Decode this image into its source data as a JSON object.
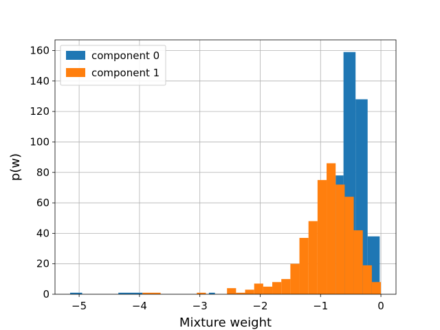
{
  "chart_data": {
    "type": "histogram",
    "title": "",
    "xlabel": "Mixture weight",
    "ylabel": "p(w)",
    "xlim": [
      -5.4,
      0.25
    ],
    "ylim": [
      0,
      167
    ],
    "x_ticks": [
      -5,
      -4,
      -3,
      -2,
      -1,
      0
    ],
    "x_tick_labels": [
      "−5",
      "−4",
      "−3",
      "−2",
      "−1",
      "0"
    ],
    "y_ticks": [
      0,
      20,
      40,
      60,
      80,
      100,
      120,
      140,
      160
    ],
    "y_tick_labels": [
      "0",
      "20",
      "40",
      "60",
      "80",
      "100",
      "120",
      "140",
      "160"
    ],
    "grid": true,
    "legend_position": "top-left",
    "series": [
      {
        "name": "component 0",
        "color": "#1f77b4",
        "bins": [
          {
            "x0": -5.15,
            "x1": -4.95,
            "count": 1
          },
          {
            "x0": -4.35,
            "x1": -3.95,
            "count": 1
          },
          {
            "x0": -2.85,
            "x1": -2.75,
            "count": 1
          },
          {
            "x0": -0.75,
            "x1": -0.62,
            "count": 78
          },
          {
            "x0": -0.62,
            "x1": -0.42,
            "count": 159
          },
          {
            "x0": -0.42,
            "x1": -0.22,
            "count": 128
          },
          {
            "x0": -0.22,
            "x1": -0.02,
            "count": 38
          }
        ]
      },
      {
        "name": "component 1",
        "color": "#ff7f0e",
        "bins": [
          {
            "x0": -3.95,
            "x1": -3.65,
            "count": 1
          },
          {
            "x0": -3.05,
            "x1": -2.9,
            "count": 1
          },
          {
            "x0": -2.55,
            "x1": -2.4,
            "count": 4
          },
          {
            "x0": -2.4,
            "x1": -2.25,
            "count": 1
          },
          {
            "x0": -2.25,
            "x1": -2.1,
            "count": 3
          },
          {
            "x0": -2.1,
            "x1": -1.95,
            "count": 7
          },
          {
            "x0": -1.95,
            "x1": -1.8,
            "count": 5
          },
          {
            "x0": -1.8,
            "x1": -1.65,
            "count": 8
          },
          {
            "x0": -1.65,
            "x1": -1.5,
            "count": 10
          },
          {
            "x0": -1.5,
            "x1": -1.35,
            "count": 20
          },
          {
            "x0": -1.35,
            "x1": -1.2,
            "count": 37
          },
          {
            "x0": -1.2,
            "x1": -1.05,
            "count": 48
          },
          {
            "x0": -1.05,
            "x1": -0.9,
            "count": 75
          },
          {
            "x0": -0.9,
            "x1": -0.75,
            "count": 86
          },
          {
            "x0": -0.75,
            "x1": -0.6,
            "count": 72
          },
          {
            "x0": -0.6,
            "x1": -0.45,
            "count": 64
          },
          {
            "x0": -0.45,
            "x1": -0.3,
            "count": 42
          },
          {
            "x0": -0.3,
            "x1": -0.15,
            "count": 19
          },
          {
            "x0": -0.15,
            "x1": 0.0,
            "count": 8
          }
        ]
      }
    ]
  }
}
